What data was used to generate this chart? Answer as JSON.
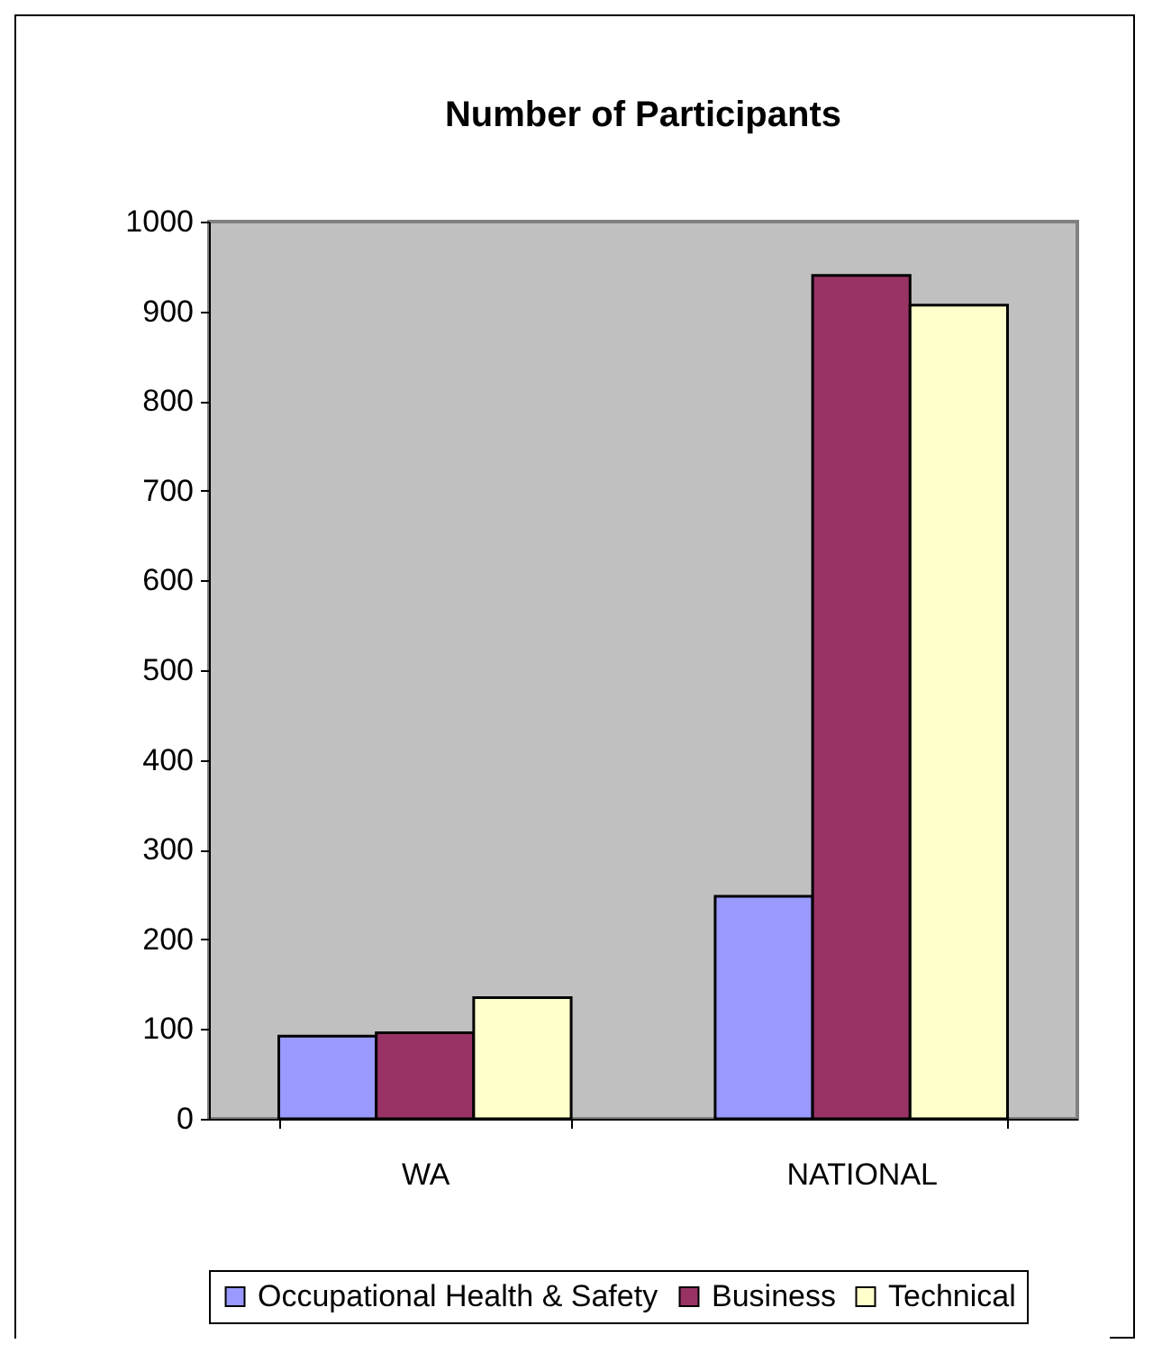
{
  "chart_data": {
    "type": "bar",
    "title": "Number of Participants",
    "categories": [
      "WA",
      "NATIONAL"
    ],
    "series": [
      {
        "name": "Occupational Health & Safety",
        "color": "#9999ff",
        "values": [
          92,
          248
        ]
      },
      {
        "name": "Business",
        "color": "#993366",
        "values": [
          96,
          940
        ]
      },
      {
        "name": "Technical",
        "color": "#ffffcc",
        "values": [
          135,
          907
        ]
      }
    ],
    "ylim": [
      0,
      1000
    ],
    "yticks": [
      0,
      100,
      200,
      300,
      400,
      500,
      600,
      700,
      800,
      900,
      1000
    ],
    "grid": false,
    "legend": "bottom"
  }
}
